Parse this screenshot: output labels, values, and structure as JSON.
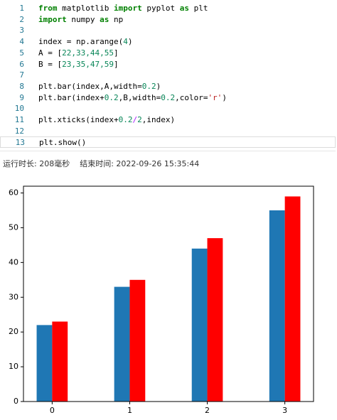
{
  "editor": {
    "lines": [
      {
        "number": "1",
        "tokens": [
          {
            "text": "from",
            "kind": "kw"
          },
          {
            "text": " matplotlib ",
            "kind": "plain"
          },
          {
            "text": "import",
            "kind": "kw"
          },
          {
            "text": " pyplot ",
            "kind": "plain"
          },
          {
            "text": "as",
            "kind": "kw"
          },
          {
            "text": " plt",
            "kind": "plain"
          }
        ]
      },
      {
        "number": "2",
        "tokens": [
          {
            "text": "import",
            "kind": "kw"
          },
          {
            "text": " numpy ",
            "kind": "plain"
          },
          {
            "text": "as",
            "kind": "kw"
          },
          {
            "text": " np",
            "kind": "plain"
          }
        ]
      },
      {
        "number": "3"
      },
      {
        "number": "4",
        "tokens": [
          {
            "text": "index = np.arange(",
            "kind": "plain"
          },
          {
            "text": "4",
            "kind": "num"
          },
          {
            "text": ")",
            "kind": "plain"
          }
        ]
      },
      {
        "number": "5",
        "tokens": [
          {
            "text": "A = [",
            "kind": "plain"
          },
          {
            "text": "22,33,44,55",
            "kind": "num"
          },
          {
            "text": "]",
            "kind": "plain"
          }
        ]
      },
      {
        "number": "6",
        "tokens": [
          {
            "text": "B = [",
            "kind": "plain"
          },
          {
            "text": "23,35,47,59",
            "kind": "num"
          },
          {
            "text": "]",
            "kind": "plain"
          }
        ]
      },
      {
        "number": "7"
      },
      {
        "number": "8",
        "tokens": [
          {
            "text": "plt.bar(index,A,width=",
            "kind": "plain"
          },
          {
            "text": "0.2",
            "kind": "num"
          },
          {
            "text": ")",
            "kind": "plain"
          }
        ]
      },
      {
        "number": "9",
        "tokens": [
          {
            "text": "plt.bar(index+",
            "kind": "plain"
          },
          {
            "text": "0.2",
            "kind": "num"
          },
          {
            "text": ",B,width=",
            "kind": "plain"
          },
          {
            "text": "0.2",
            "kind": "num"
          },
          {
            "text": ",color=",
            "kind": "plain"
          },
          {
            "text": "'r'",
            "kind": "str"
          },
          {
            "text": ")",
            "kind": "plain"
          }
        ]
      },
      {
        "number": "10"
      },
      {
        "number": "11",
        "tokens": [
          {
            "text": "plt.xticks(index+",
            "kind": "plain"
          },
          {
            "text": "0.2",
            "kind": "num"
          },
          {
            "text": "/",
            "kind": "op"
          },
          {
            "text": "2",
            "kind": "num"
          },
          {
            "text": ",index)",
            "kind": "plain"
          }
        ]
      },
      {
        "number": "12"
      },
      {
        "number": "13",
        "tokens": [
          {
            "text": "plt.show()",
            "kind": "plain"
          }
        ]
      }
    ]
  },
  "status": {
    "duration": "运行时长: 208毫秒",
    "finished": "结束时间: 2022-09-26 15:35:44"
  },
  "chart_data": {
    "type": "bar",
    "categories": [
      "0",
      "1",
      "2",
      "3"
    ],
    "series": [
      {
        "color": "#1f77b4",
        "values": [
          22,
          33,
          44,
          55
        ]
      },
      {
        "color": "#ff0000",
        "values": [
          23,
          35,
          47,
          59
        ]
      }
    ],
    "ylim": [
      0,
      61.95
    ],
    "yticks": [
      0,
      10,
      20,
      30,
      40,
      50,
      60
    ]
  }
}
